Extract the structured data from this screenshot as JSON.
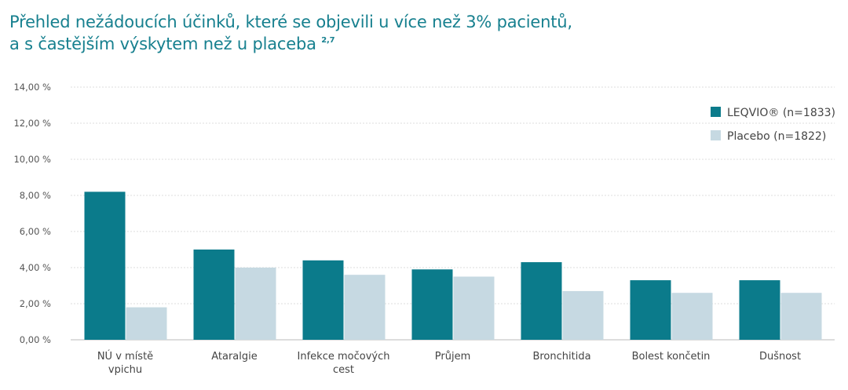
{
  "title": {
    "line1": "Přehled nežádoucích účinků, které se objevili u více než 3% pacientů,",
    "line2": "a s častějším výskytem než u placeba",
    "superscript": "2,7"
  },
  "chart_data": {
    "type": "bar",
    "categories": [
      [
        "NÚ v místě",
        "vpichu"
      ],
      [
        "Ataralgie"
      ],
      [
        "Infekce močových",
        "cest"
      ],
      [
        "Průjem"
      ],
      [
        "Bronchitida"
      ],
      [
        "Bolest končetin"
      ],
      [
        "Dušnost"
      ]
    ],
    "series": [
      {
        "name": "LEQVIO® (n=1833)",
        "color": "#0b7b8b",
        "values": [
          8.2,
          5.0,
          4.4,
          3.9,
          4.3,
          3.3,
          3.3
        ]
      },
      {
        "name": "Placebo (n=1822)",
        "color": "#c6d9e2",
        "values": [
          1.8,
          4.0,
          3.6,
          3.5,
          2.7,
          2.6,
          2.6
        ]
      }
    ],
    "ylim": [
      0,
      14
    ],
    "yticks": [
      "0,00 %",
      "2,00 %",
      "4,00 %",
      "6,00 %",
      "8,00 %",
      "10,00 %",
      "12,00 %",
      "14,00 %"
    ],
    "grid": true,
    "legend": "right"
  }
}
